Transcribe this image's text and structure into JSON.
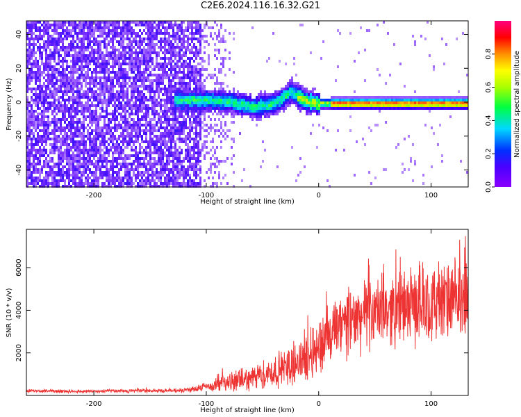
{
  "title": "C2E6.2024.116.16.32.G21",
  "chart_data": [
    {
      "type": "heatmap",
      "xlabel": "Height of straight line (km)",
      "ylabel": "Frequency (Hz)",
      "xlim": [
        -260,
        133
      ],
      "ylim": [
        -50,
        48
      ],
      "x_ticks": [
        "-200",
        "-100",
        "0",
        "100"
      ],
      "x_tick_values": [
        -200,
        -100,
        0,
        100
      ],
      "y_ticks": [
        "-40",
        "-20",
        "0",
        "20",
        "40"
      ],
      "y_tick_values": [
        -40,
        -20,
        0,
        20,
        40
      ],
      "colorbar": {
        "label": "Normalized spectral amplitude",
        "range": [
          0,
          1
        ],
        "ticks": [
          "0.0",
          "0.2",
          "0.4",
          "0.6",
          "0.8"
        ],
        "tick_values": [
          0.0,
          0.2,
          0.4,
          0.6,
          0.8
        ],
        "colormap": "rainbow (violet to magenta-red)"
      },
      "description_points": {
        "noise_region_x": [
          -260,
          -105
        ],
        "signal_center_freq": [
          {
            "x": -120,
            "f": 2
          },
          {
            "x": -100,
            "f": 2
          },
          {
            "x": -80,
            "f": 1
          },
          {
            "x": -60,
            "f": -2
          },
          {
            "x": -45,
            "f": -1
          },
          {
            "x": -35,
            "f": 2
          },
          {
            "x": -25,
            "f": 7
          },
          {
            "x": -15,
            "f": 2
          },
          {
            "x": 0,
            "f": 0
          },
          {
            "x": 30,
            "f": 0
          },
          {
            "x": 60,
            "f": 0
          },
          {
            "x": 90,
            "f": 0
          },
          {
            "x": 133,
            "f": 0
          }
        ]
      }
    },
    {
      "type": "line",
      "xlabel": "Height of straight line (km)",
      "ylabel": "SNR (10 * v/v)",
      "xlim": [
        -260,
        133
      ],
      "ylim": [
        0,
        7800
      ],
      "x_ticks": [
        "-200",
        "-100",
        "0",
        "100"
      ],
      "x_tick_values": [
        -200,
        -100,
        0,
        100
      ],
      "y_ticks": [
        "2000",
        "4000",
        "6000"
      ],
      "y_tick_values": [
        2000,
        4000,
        6000
      ],
      "line_color": "#ee3333",
      "envelope": [
        {
          "x": -260,
          "mean": 200,
          "spread": 60
        },
        {
          "x": -200,
          "mean": 200,
          "spread": 60
        },
        {
          "x": -120,
          "mean": 230,
          "spread": 80
        },
        {
          "x": -100,
          "mean": 400,
          "spread": 200
        },
        {
          "x": -80,
          "mean": 600,
          "spread": 350
        },
        {
          "x": -60,
          "mean": 800,
          "spread": 450
        },
        {
          "x": -40,
          "mean": 1100,
          "spread": 600
        },
        {
          "x": -20,
          "mean": 1500,
          "spread": 800
        },
        {
          "x": 0,
          "mean": 2300,
          "spread": 1100
        },
        {
          "x": 20,
          "mean": 3200,
          "spread": 1300
        },
        {
          "x": 40,
          "mean": 3800,
          "spread": 1300
        },
        {
          "x": 60,
          "mean": 4000,
          "spread": 1300
        },
        {
          "x": 80,
          "mean": 4200,
          "spread": 1400
        },
        {
          "x": 100,
          "mean": 4300,
          "spread": 1500
        },
        {
          "x": 120,
          "mean": 4400,
          "spread": 1500
        },
        {
          "x": 133,
          "mean": 4500,
          "spread": 1500
        }
      ]
    }
  ]
}
